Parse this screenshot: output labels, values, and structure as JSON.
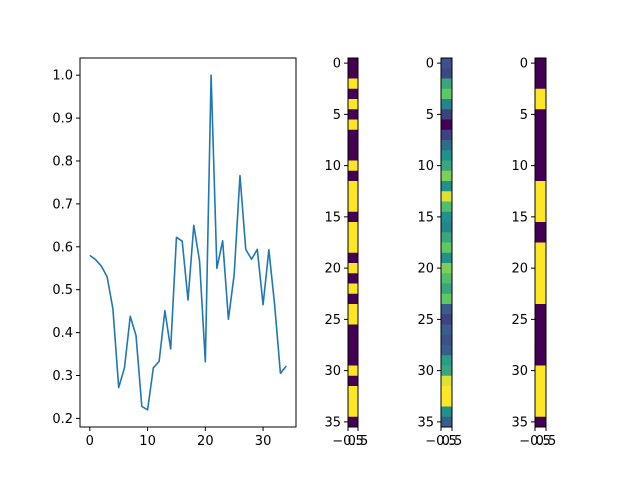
{
  "chart_data": [
    {
      "type": "line",
      "title": "",
      "xlabel": "",
      "ylabel": "",
      "xlim": [
        -1.7,
        35.7
      ],
      "ylim": [
        0.18,
        1.04
      ],
      "xticks": [
        0,
        10,
        20,
        30
      ],
      "yticks": [
        0.2,
        0.3,
        0.4,
        0.5,
        0.6,
        0.7,
        0.8,
        0.9,
        1.0
      ],
      "ytick_labels": [
        "0.2",
        "0.3",
        "0.4",
        "0.5",
        "0.6",
        "0.7",
        "0.8",
        "0.9",
        "1.0"
      ],
      "grid": false,
      "color": "#1f77b4",
      "series": [
        {
          "x": [
            0,
            1,
            2,
            3,
            4,
            5,
            6,
            7,
            8,
            9,
            10,
            11,
            12,
            13,
            14,
            15,
            16,
            17,
            18,
            19,
            20,
            21,
            22,
            23,
            24,
            25,
            26,
            27,
            28,
            29,
            30,
            31,
            32,
            33,
            34
          ],
          "values": [
            0.58,
            0.57,
            0.555,
            0.53,
            0.455,
            0.272,
            0.318,
            0.438,
            0.393,
            0.228,
            0.22,
            0.318,
            0.333,
            0.451,
            0.362,
            0.622,
            0.613,
            0.476,
            0.65,
            0.567,
            0.332,
            1.0,
            0.55,
            0.614,
            0.431,
            0.536,
            0.766,
            0.594,
            0.571,
            0.594,
            0.465,
            0.593,
            0.465,
            0.305,
            0.322
          ]
        }
      ]
    },
    {
      "type": "heatmap",
      "title": "",
      "colormap": "viridis",
      "yticks": [
        0,
        5,
        10,
        15,
        20,
        25,
        30,
        35
      ],
      "xtick_labels": [
        "−0.5",
        "0.5"
      ],
      "values": [
        0,
        0,
        1,
        0,
        1,
        0,
        1,
        0,
        0,
        0,
        1,
        0,
        1,
        1,
        1,
        0,
        1,
        1,
        1,
        0,
        1,
        0,
        1,
        0,
        1,
        1,
        0,
        0,
        0,
        0,
        1,
        0,
        1,
        1,
        1,
        0
      ]
    },
    {
      "type": "heatmap",
      "title": "",
      "colormap": "viridis",
      "yticks": [
        0,
        5,
        10,
        15,
        20,
        25,
        30,
        35
      ],
      "xtick_labels": [
        "−0.5",
        "0.5"
      ],
      "values": [
        0.25,
        0.22,
        0.6,
        0.75,
        0.45,
        0.2,
        0.0,
        0.2,
        0.35,
        0.5,
        0.6,
        0.8,
        0.5,
        0.95,
        0.7,
        0.5,
        0.45,
        0.6,
        0.75,
        0.5,
        0.8,
        0.7,
        0.6,
        0.75,
        0.3,
        0.2,
        0.3,
        0.25,
        0.3,
        0.55,
        0.6,
        0.95,
        1.0,
        1.0,
        0.5,
        0.3
      ]
    },
    {
      "type": "heatmap",
      "title": "",
      "colormap": "viridis",
      "yticks": [
        0,
        5,
        10,
        15,
        20,
        25,
        30,
        35
      ],
      "xtick_labels": [
        "−0.5",
        "0.5"
      ],
      "values": [
        0,
        0,
        0,
        1,
        1,
        0,
        0,
        0,
        0,
        0,
        0,
        0,
        1,
        1,
        1,
        1,
        0,
        0,
        1,
        1,
        1,
        1,
        1,
        1,
        0,
        0,
        0,
        0,
        0,
        0,
        1,
        1,
        1,
        1,
        1,
        0
      ]
    }
  ]
}
